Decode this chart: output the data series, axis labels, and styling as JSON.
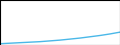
{
  "line_color": "#4ab8e8",
  "line_width": 1.0,
  "background_color": "#ffffff",
  "x_values": [
    2009,
    2010,
    2011,
    2012,
    2013,
    2014,
    2015,
    2016,
    2017,
    2018,
    2019,
    2020,
    2021
  ],
  "y_values": [
    -2000,
    -1800,
    -1600,
    -1400,
    -1200,
    -900,
    -600,
    -200,
    200,
    700,
    1200,
    1800,
    2500
  ],
  "ylim": [
    -2500,
    15000
  ],
  "xlim": [
    2009,
    2021
  ],
  "figsize": [
    1.2,
    0.45
  ],
  "dpi": 100
}
